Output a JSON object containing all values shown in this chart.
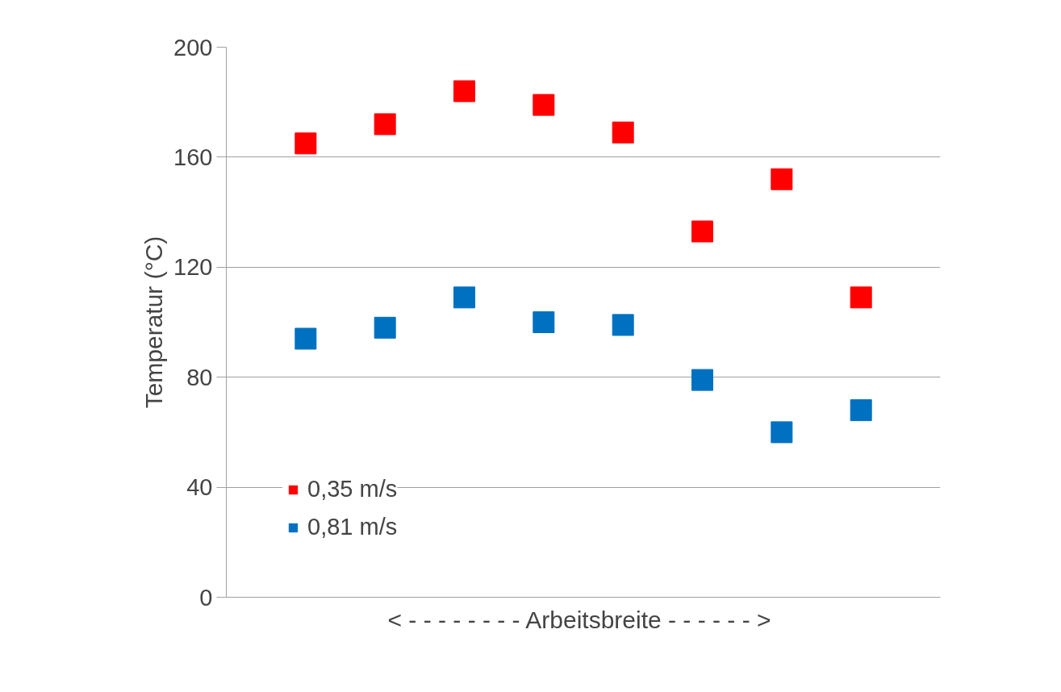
{
  "chart_data": {
    "type": "scatter",
    "xlabel": "< - - - - - - - - Arbeitsbreite  - - - - - - >",
    "ylabel": "Temperatur (°C)",
    "categories": [
      null,
      null,
      null,
      null,
      null,
      null,
      null,
      null
    ],
    "series": [
      {
        "name": "0,35 m/s",
        "color": "#ff0000",
        "values": [
          165,
          172,
          184,
          179,
          169,
          133,
          152,
          109
        ]
      },
      {
        "name": "0,81 m/s",
        "color": "#0070c0",
        "values": [
          94,
          98,
          109,
          100,
          99,
          79,
          60,
          68
        ]
      }
    ],
    "ylim": [
      0,
      200
    ],
    "yticks": [
      0,
      40,
      80,
      120,
      160,
      200
    ],
    "grid": "y",
    "legend": "bottom left",
    "marker": "square"
  }
}
